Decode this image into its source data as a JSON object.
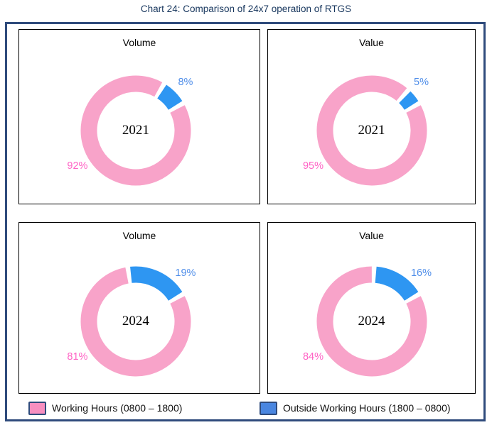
{
  "page_title": "Chart 24: Comparison of 24x7 operation of RTGS",
  "colors": {
    "working_hours": "#F8A3C9",
    "outside_working_hours": "#2E96F2",
    "working_label": "#FF63C5",
    "outside_label": "#4E8DE9",
    "legend_working_swatch": "#F78FC0",
    "legend_outside_swatch": "#4A86E0",
    "frame_border": "#2F4B7C",
    "title_text": "#17365D"
  },
  "legend": {
    "working": "Working Hours (0800 – 1800)",
    "outside": "Outside Working Hours (1800 – 0800)"
  },
  "chart_data": {
    "type": "pie",
    "subtype": "donut",
    "title": "Chart 24: Comparison of 24x7 operation of RTGS",
    "legend_position": "bottom",
    "rotation_deg": 60,
    "grid": "2x2",
    "series_names": [
      "Working Hours (0800 – 1800)",
      "Outside Working Hours (1800 – 0800)"
    ],
    "charts": [
      {
        "title": "Volume",
        "year": "2021",
        "working_pct": 92,
        "outside_pct": 8,
        "working_label": "92%",
        "outside_label": "8%"
      },
      {
        "title": "Value",
        "year": "2021",
        "working_pct": 95,
        "outside_pct": 5,
        "working_label": "95%",
        "outside_label": "5%"
      },
      {
        "title": "Volume",
        "year": "2024",
        "working_pct": 81,
        "outside_pct": 19,
        "working_label": "81%",
        "outside_label": "19%"
      },
      {
        "title": "Value",
        "year": "2024",
        "working_pct": 84,
        "outside_pct": 16,
        "working_label": "84%",
        "outside_label": "16%"
      }
    ]
  }
}
